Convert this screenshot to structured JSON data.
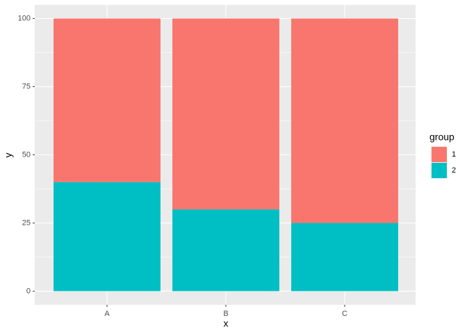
{
  "chart_data": {
    "type": "stacked_bar",
    "x_label": "x",
    "y_label": "y",
    "categories": [
      "A",
      "B",
      "C"
    ],
    "series": [
      {
        "name": "1",
        "color": "#F8766D",
        "values": [
          60,
          70,
          75
        ]
      },
      {
        "name": "2",
        "color": "#00BFC4",
        "values": [
          40,
          30,
          25
        ]
      }
    ],
    "ylim": [
      -5,
      105
    ],
    "yticks": [
      0,
      25,
      50,
      75,
      100
    ],
    "grid": true,
    "legend_title": "group",
    "legend_position": "right"
  }
}
